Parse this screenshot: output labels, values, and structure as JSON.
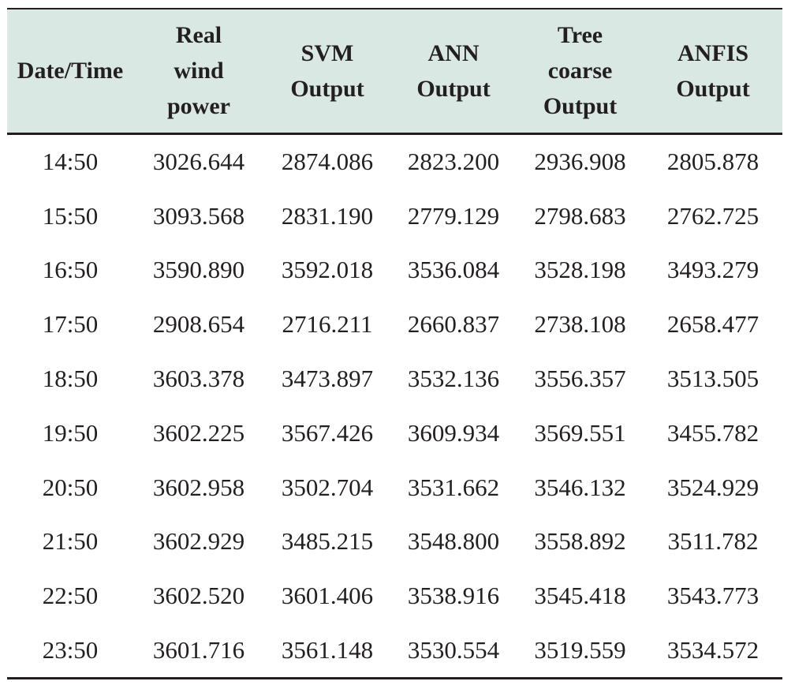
{
  "table": {
    "headers": [
      [
        "Date/Time"
      ],
      [
        "Real",
        "wind",
        "power"
      ],
      [
        "SVM",
        "Output"
      ],
      [
        "ANN",
        "Output"
      ],
      [
        "Tree",
        "coarse",
        "Output"
      ],
      [
        "ANFIS",
        "Output"
      ]
    ],
    "rows": [
      [
        "14:50",
        "3026.644",
        "2874.086",
        "2823.200",
        "2936.908",
        "2805.878"
      ],
      [
        "15:50",
        "3093.568",
        "2831.190",
        "2779.129",
        "2798.683",
        "2762.725"
      ],
      [
        "16:50",
        "3590.890",
        "3592.018",
        "3536.084",
        "3528.198",
        "3493.279"
      ],
      [
        "17:50",
        "2908.654",
        "2716.211",
        "2660.837",
        "2738.108",
        "2658.477"
      ],
      [
        "18:50",
        "3603.378",
        "3473.897",
        "3532.136",
        "3556.357",
        "3513.505"
      ],
      [
        "19:50",
        "3602.225",
        "3567.426",
        "3609.934",
        "3569.551",
        "3455.782"
      ],
      [
        "20:50",
        "3602.958",
        "3502.704",
        "3531.662",
        "3546.132",
        "3524.929"
      ],
      [
        "21:50",
        "3602.929",
        "3485.215",
        "3548.800",
        "3558.892",
        "3511.782"
      ],
      [
        "22:50",
        "3602.520",
        "3601.406",
        "3538.916",
        "3545.418",
        "3543.773"
      ],
      [
        "23:50",
        "3601.716",
        "3561.148",
        "3530.554",
        "3519.559",
        "3534.572"
      ]
    ]
  },
  "colors": {
    "header_background": "#d9e8e2",
    "text": "#231f20",
    "rule": "#231f20"
  }
}
